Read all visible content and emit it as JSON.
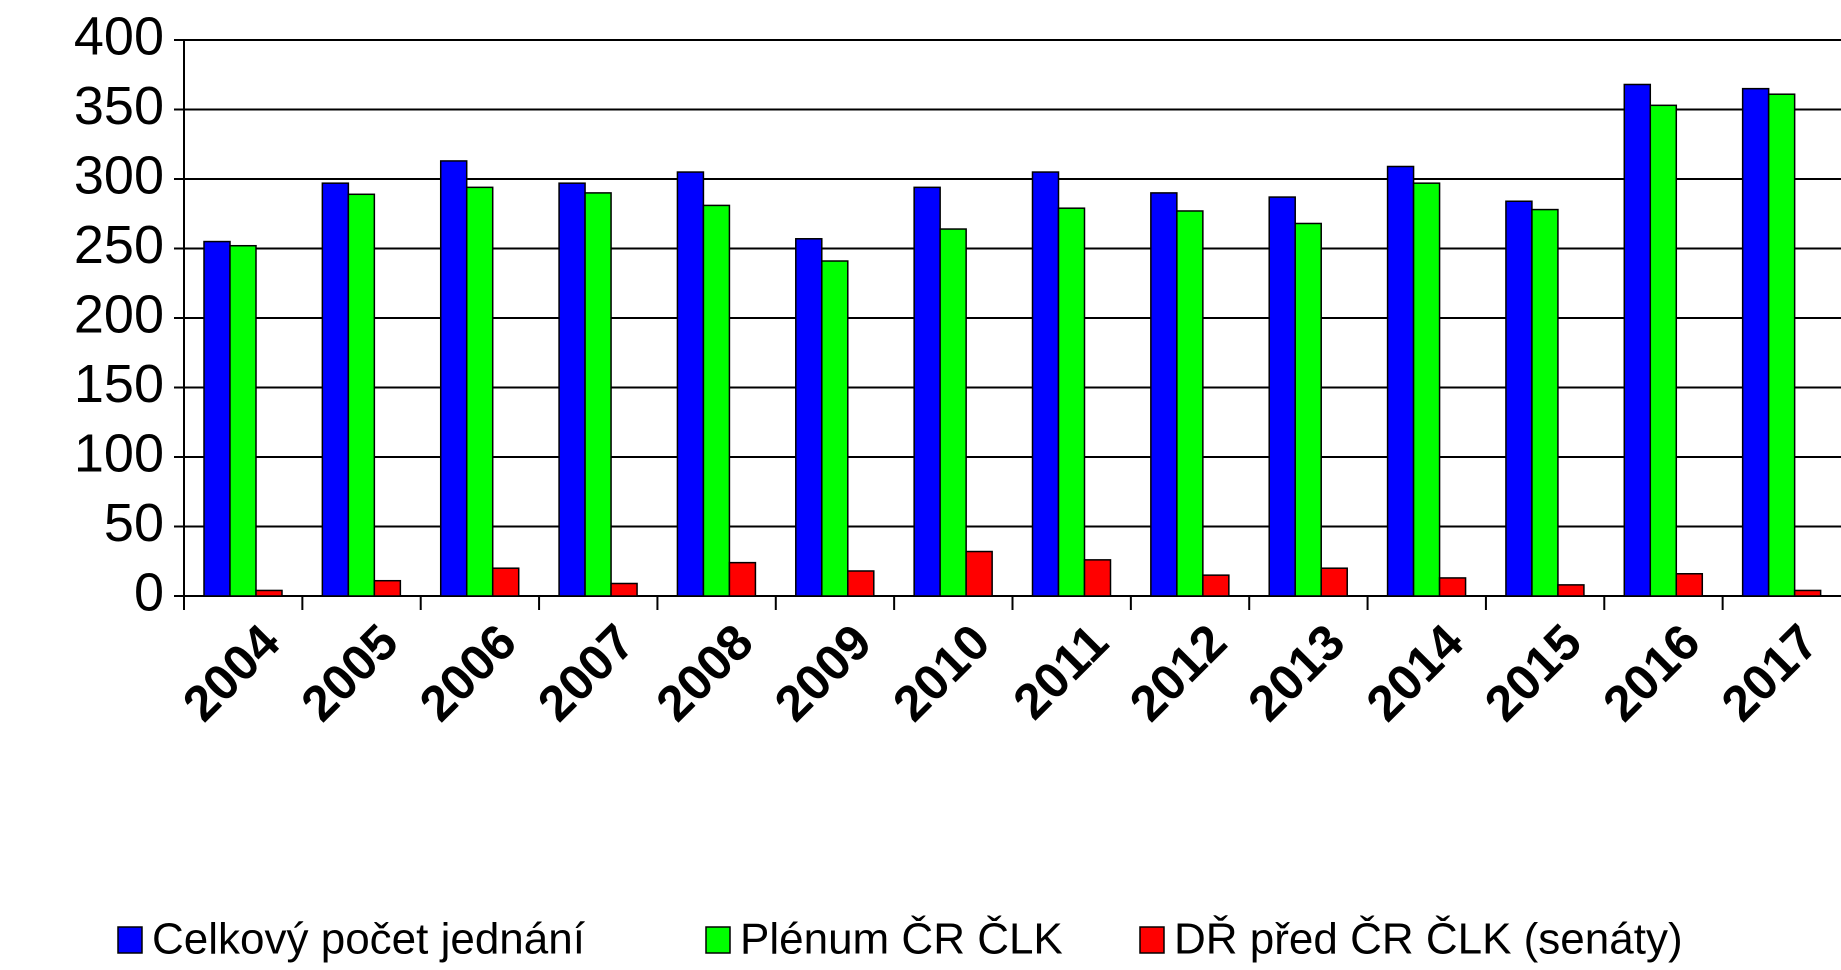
{
  "chart_data": {
    "type": "bar",
    "categories": [
      "2004",
      "2005",
      "2006",
      "2007",
      "2008",
      "2009",
      "2010",
      "2011",
      "2012",
      "2013",
      "2014",
      "2015",
      "2016",
      "2017"
    ],
    "series": [
      {
        "name": "Celkový počet jednání",
        "color": "#0000ff",
        "values": [
          255,
          297,
          313,
          297,
          305,
          257,
          294,
          305,
          290,
          287,
          309,
          284,
          368,
          365
        ]
      },
      {
        "name": "Plénum ČR ČLK",
        "color": "#00ff00",
        "values": [
          252,
          289,
          294,
          290,
          281,
          241,
          264,
          279,
          277,
          268,
          297,
          278,
          353,
          361
        ]
      },
      {
        "name": "DŘ před ČR ČLK (senáty)",
        "color": "#ff0000",
        "values": [
          4,
          11,
          20,
          9,
          24,
          18,
          32,
          26,
          15,
          20,
          13,
          8,
          16,
          4
        ]
      }
    ],
    "ylim": [
      0,
      400
    ],
    "yticks": [
      0,
      50,
      100,
      150,
      200,
      250,
      300,
      350,
      400
    ],
    "grid": true,
    "legend": "bottom"
  }
}
